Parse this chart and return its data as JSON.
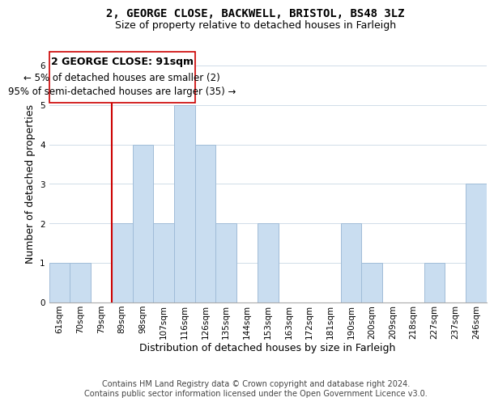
{
  "title": "2, GEORGE CLOSE, BACKWELL, BRISTOL, BS48 3LZ",
  "subtitle": "Size of property relative to detached houses in Farleigh",
  "xlabel": "Distribution of detached houses by size in Farleigh",
  "ylabel": "Number of detached properties",
  "bar_labels": [
    "61sqm",
    "70sqm",
    "79sqm",
    "89sqm",
    "98sqm",
    "107sqm",
    "116sqm",
    "126sqm",
    "135sqm",
    "144sqm",
    "153sqm",
    "163sqm",
    "172sqm",
    "181sqm",
    "190sqm",
    "200sqm",
    "209sqm",
    "218sqm",
    "227sqm",
    "237sqm",
    "246sqm"
  ],
  "bar_values": [
    1,
    1,
    0,
    2,
    4,
    2,
    5,
    4,
    2,
    0,
    2,
    0,
    0,
    0,
    2,
    1,
    0,
    0,
    1,
    0,
    3
  ],
  "bar_color": "#c9ddf0",
  "bar_edge_color": "#a0bcd8",
  "vline_x_index": 3,
  "vline_color": "#cc0000",
  "annotation_title": "2 GEORGE CLOSE: 91sqm",
  "annotation_line1": "← 5% of detached houses are smaller (2)",
  "annotation_line2": "95% of semi-detached houses are larger (35) →",
  "annotation_box_color": "#ffffff",
  "annotation_box_edge": "#cc0000",
  "ylim": [
    0,
    6
  ],
  "yticks": [
    0,
    1,
    2,
    3,
    4,
    5,
    6
  ],
  "footer1": "Contains HM Land Registry data © Crown copyright and database right 2024.",
  "footer2": "Contains public sector information licensed under the Open Government Licence v3.0.",
  "bg_color": "#ffffff",
  "plot_bg_color": "#ffffff",
  "title_fontsize": 10,
  "subtitle_fontsize": 9,
  "axis_label_fontsize": 9,
  "tick_fontsize": 7.5,
  "annotation_title_fontsize": 9,
  "annotation_fontsize": 8.5,
  "footer_fontsize": 7
}
